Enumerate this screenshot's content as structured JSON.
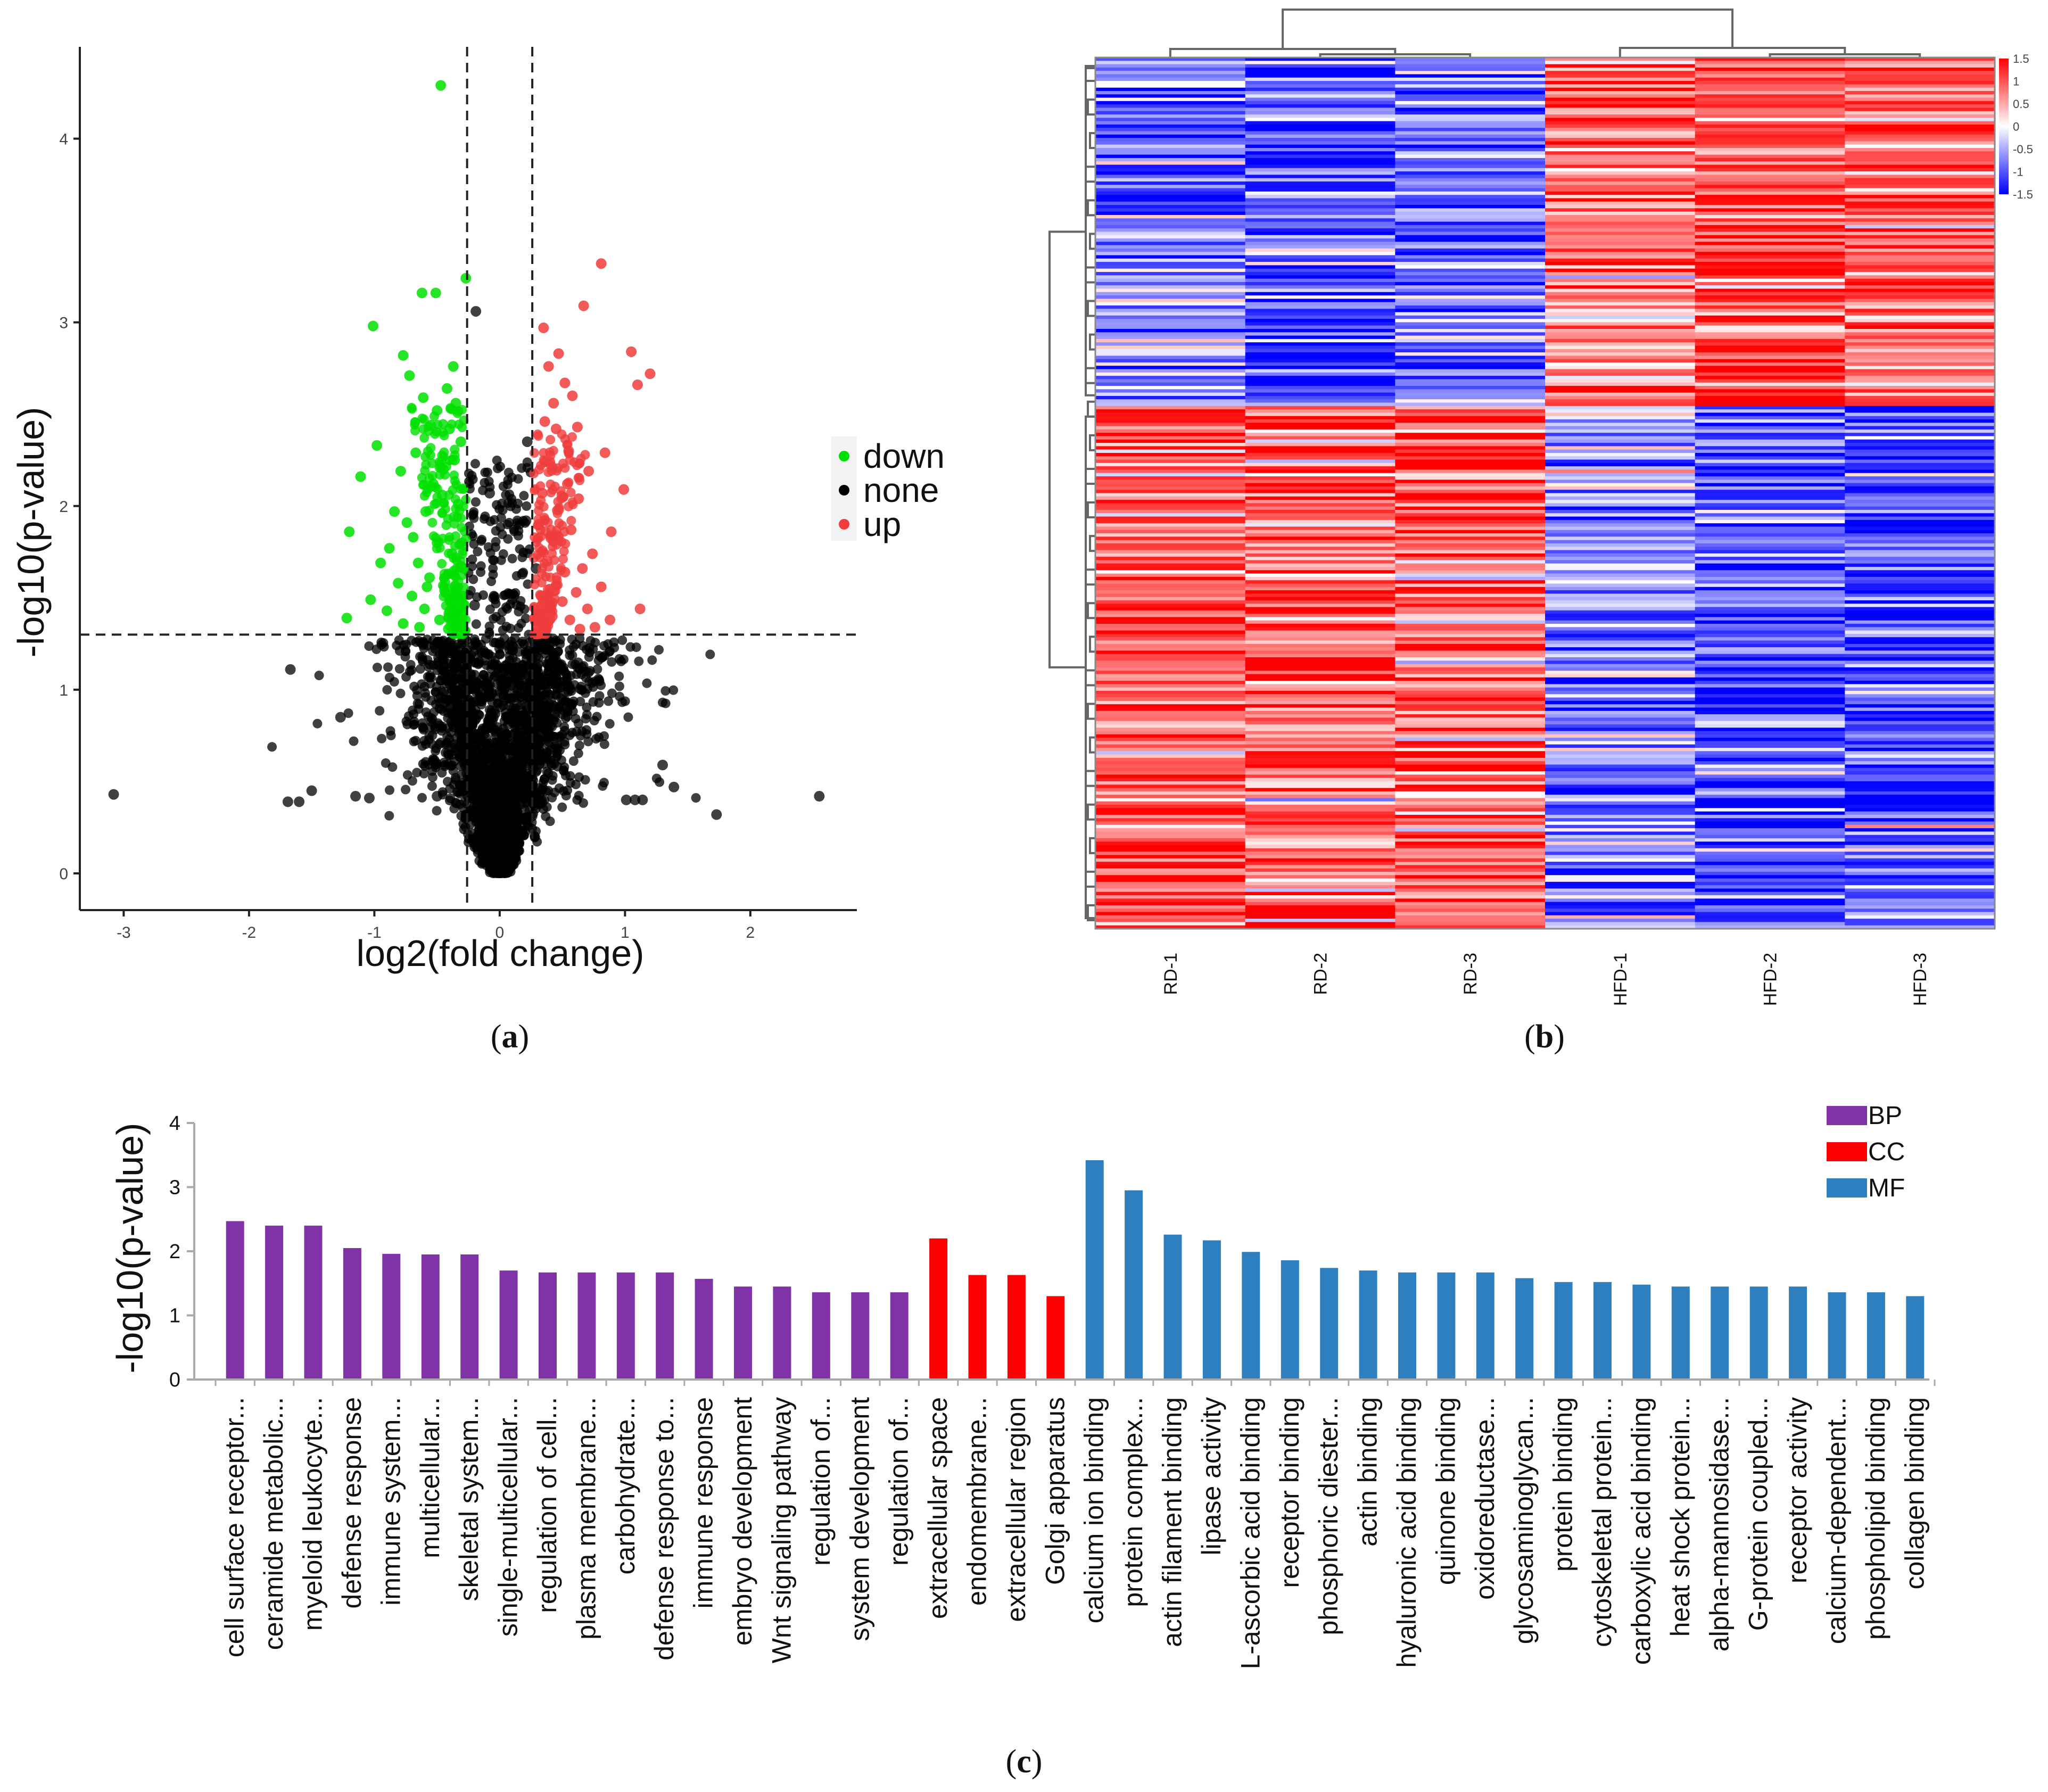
{
  "chart_data": [
    {
      "type": "scatter",
      "panel_label": "a",
      "title": "",
      "xlabel": "log2(fold change)",
      "ylabel": "-log10(p-value)",
      "xlim": [
        -3.35,
        2.85
      ],
      "ylim": [
        -0.2,
        4.5
      ],
      "x_ticks": [
        -3,
        -2,
        -1,
        0,
        1,
        2
      ],
      "y_ticks": [
        0,
        1,
        2,
        3,
        4
      ],
      "x_tick_labels": [
        "-3",
        "-2",
        "-1",
        "0",
        "1",
        "2"
      ],
      "y_tick_labels": [
        "0",
        "1",
        "2",
        "3",
        "4"
      ],
      "thresholds": {
        "x": [
          -0.26,
          0.26
        ],
        "y": 1.3
      },
      "legend": {
        "position": "right",
        "entries": [
          {
            "name": "down",
            "color": "#00e000"
          },
          {
            "name": "none",
            "color": "#000000"
          },
          {
            "name": "up",
            "color": "#f03c3c"
          }
        ]
      },
      "series": [
        {
          "name": "down",
          "color": "#00e000",
          "points": [
            [
              -0.47,
              4.29
            ],
            [
              -0.27,
              3.24
            ],
            [
              -0.62,
              3.16
            ],
            [
              -0.51,
              3.16
            ],
            [
              -1.01,
              2.98
            ],
            [
              -0.77,
              2.82
            ],
            [
              -0.37,
              2.76
            ],
            [
              -0.72,
              2.71
            ],
            [
              -0.42,
              2.64
            ],
            [
              -0.61,
              2.59
            ],
            [
              -0.35,
              2.56
            ],
            [
              -0.98,
              2.33
            ],
            [
              -0.67,
              2.29
            ],
            [
              -0.4,
              2.42
            ],
            [
              -0.31,
              2.35
            ],
            [
              -0.79,
              2.19
            ],
            [
              -1.11,
              2.16
            ],
            [
              -0.53,
              2.12
            ],
            [
              -0.36,
              2.25
            ],
            [
              -0.46,
              2.06
            ],
            [
              -0.59,
              1.97
            ],
            [
              -1.2,
              1.86
            ],
            [
              -0.74,
              1.91
            ],
            [
              -0.33,
              2.01
            ],
            [
              -0.88,
              1.77
            ],
            [
              -0.5,
              1.8
            ],
            [
              -0.65,
              1.69
            ],
            [
              -0.95,
              1.69
            ],
            [
              -0.38,
              1.74
            ],
            [
              -0.81,
              1.58
            ],
            [
              -0.56,
              1.61
            ],
            [
              -0.29,
              1.66
            ],
            [
              -1.03,
              1.49
            ],
            [
              -0.7,
              1.51
            ],
            [
              -0.44,
              1.54
            ],
            [
              -1.22,
              1.39
            ],
            [
              -0.9,
              1.43
            ],
            [
              -0.6,
              1.44
            ],
            [
              -0.34,
              1.47
            ],
            [
              -0.77,
              1.36
            ],
            [
              -0.48,
              1.38
            ],
            [
              -0.64,
              1.34
            ],
            [
              -0.41,
              1.33
            ],
            [
              -0.3,
              1.4
            ],
            [
              -0.55,
              2.44
            ],
            [
              -0.45,
              2.2
            ],
            [
              -0.5,
              2.52
            ],
            [
              -0.84,
              1.97
            ],
            [
              -0.69,
              1.83
            ],
            [
              -0.58,
              1.56
            ]
          ]
        },
        {
          "name": "up",
          "color": "#f03c3c",
          "points": [
            [
              0.81,
              3.32
            ],
            [
              0.67,
              3.09
            ],
            [
              0.35,
              2.97
            ],
            [
              1.05,
              2.84
            ],
            [
              0.47,
              2.83
            ],
            [
              1.2,
              2.72
            ],
            [
              0.52,
              2.67
            ],
            [
              0.39,
              2.76
            ],
            [
              0.58,
              2.6
            ],
            [
              1.1,
              2.66
            ],
            [
              0.43,
              2.56
            ],
            [
              0.62,
              2.43
            ],
            [
              0.84,
              2.29
            ],
            [
              0.45,
              2.42
            ],
            [
              0.36,
              2.46
            ],
            [
              0.71,
              2.19
            ],
            [
              0.54,
              2.12
            ],
            [
              0.99,
              2.09
            ],
            [
              0.4,
              2.24
            ],
            [
              0.63,
              2.04
            ],
            [
              0.47,
              1.98
            ],
            [
              0.34,
              2.07
            ],
            [
              0.89,
              1.86
            ],
            [
              0.57,
              1.87
            ],
            [
              0.74,
              1.74
            ],
            [
              0.43,
              1.81
            ],
            [
              0.31,
              1.9
            ],
            [
              0.66,
              1.66
            ],
            [
              0.52,
              1.64
            ],
            [
              0.38,
              1.7
            ],
            [
              0.81,
              1.56
            ],
            [
              0.61,
              1.53
            ],
            [
              0.45,
              1.57
            ],
            [
              1.12,
              1.44
            ],
            [
              0.7,
              1.44
            ],
            [
              0.5,
              1.48
            ],
            [
              0.33,
              1.51
            ],
            [
              0.88,
              1.38
            ],
            [
              0.56,
              1.38
            ],
            [
              0.42,
              1.4
            ],
            [
              0.3,
              1.42
            ],
            [
              0.64,
              1.33
            ],
            [
              0.76,
              1.34
            ],
            [
              0.36,
              2.24
            ],
            [
              0.55,
              2.3
            ]
          ]
        },
        {
          "name": "none",
          "color": "#000000",
          "points": [
            [
              -3.08,
              0.43
            ],
            [
              -1.67,
              1.11
            ],
            [
              -1.69,
              0.39
            ],
            [
              -1.6,
              0.39
            ],
            [
              -1.5,
              0.45
            ],
            [
              -1.27,
              0.85
            ],
            [
              -1.15,
              0.42
            ],
            [
              -1.04,
              0.41
            ],
            [
              -0.5,
              0.42
            ],
            [
              2.55,
              0.42
            ],
            [
              1.73,
              0.32
            ],
            [
              1.39,
              0.47
            ],
            [
              1.3,
              0.59
            ],
            [
              1.08,
              0.4
            ],
            [
              1.01,
              0.4
            ],
            [
              1.14,
              0.4
            ],
            [
              -0.19,
              3.06
            ],
            [
              0.22,
              2.35
            ],
            [
              -0.08,
              2.07
            ],
            [
              0.21,
              1.92
            ],
            [
              -0.2,
              1.46
            ],
            [
              0.18,
              1.63
            ],
            [
              0.29,
              1.66
            ]
          ]
        }
      ]
    },
    {
      "type": "heatmap",
      "panel_label": "b",
      "title": "",
      "columns": [
        "RD-1",
        "RD-2",
        "RD-3",
        "HFD-1",
        "HFD-2",
        "HFD-3"
      ],
      "color_scale": {
        "ticks": [
          1.5,
          1,
          0.5,
          0,
          -0.5,
          -1,
          -1.5
        ],
        "tick_labels": [
          "1.5",
          "1",
          "0.5",
          "0",
          "-0.5",
          "-1",
          "-1.5"
        ],
        "low": "#0000ff",
        "mid": "#ffffff",
        "high": "#ff0000"
      },
      "row_bands": [
        {
          "rows_fraction": 0.4,
          "values": [
            -0.6,
            -1.0,
            -0.8,
            0.9,
            1.1,
            1.0
          ]
        },
        {
          "rows_fraction": 0.6,
          "values": [
            0.9,
            0.9,
            0.9,
            -0.7,
            -1.1,
            -1.1
          ]
        }
      ]
    },
    {
      "type": "bar",
      "panel_label": "c",
      "title": "",
      "xlabel": "",
      "ylabel": "-log10(p-value)",
      "ylim": [
        0,
        4
      ],
      "y_ticks": [
        0,
        1,
        2,
        3,
        4
      ],
      "y_tick_labels": [
        "0",
        "1",
        "2",
        "3",
        "4"
      ],
      "legend": {
        "position": "top-right",
        "entries": [
          {
            "name": "BP",
            "color": "#7f33a7"
          },
          {
            "name": "CC",
            "color": "#ff0000"
          },
          {
            "name": "MF",
            "color": "#2e7fc0"
          }
        ]
      },
      "categories": [
        "cell surface receptor...",
        "ceramide metabolic...",
        "myeloid leukocyte...",
        "defense response",
        "immune system...",
        "multicellular...",
        "skeletal system...",
        "single-multicellular...",
        "regulation of cell...",
        "plasma membrane...",
        "carbohydrate...",
        "defense response to...",
        "immune response",
        "embryo development",
        "Wnt signaling pathway",
        "regulation of...",
        "system development",
        "regulation of...",
        "extracellular space",
        "endomembrane...",
        "extracellular region",
        "Golgi apparatus",
        "calcium ion binding",
        "protein complex...",
        "actin filament binding",
        "lipase activity",
        "L-ascorbic acid binding",
        "receptor binding",
        "phosphoric diester...",
        "actin binding",
        "hyaluronic acid binding",
        "quinone binding",
        "oxidoreductase...",
        "glycosaminoglycan...",
        "protein binding",
        "cytoskeletal protein...",
        "carboxylic acid binding",
        "heat shock protein...",
        "alpha-mannosidase...",
        "G-protein coupled...",
        "receptor activity",
        "calcium-dependent...",
        "phospholipid binding",
        "collagen binding"
      ],
      "groups": [
        "BP",
        "BP",
        "BP",
        "BP",
        "BP",
        "BP",
        "BP",
        "BP",
        "BP",
        "BP",
        "BP",
        "BP",
        "BP",
        "BP",
        "BP",
        "BP",
        "BP",
        "BP",
        "CC",
        "CC",
        "CC",
        "CC",
        "MF",
        "MF",
        "MF",
        "MF",
        "MF",
        "MF",
        "MF",
        "MF",
        "MF",
        "MF",
        "MF",
        "MF",
        "MF",
        "MF",
        "MF",
        "MF",
        "MF",
        "MF",
        "MF",
        "MF",
        "MF",
        "MF"
      ],
      "values": [
        2.47,
        2.4,
        2.4,
        2.05,
        1.96,
        1.95,
        1.95,
        1.7,
        1.67,
        1.67,
        1.67,
        1.67,
        1.57,
        1.45,
        1.45,
        1.36,
        1.36,
        1.36,
        2.2,
        1.63,
        1.63,
        1.3,
        3.42,
        2.95,
        2.26,
        2.17,
        1.99,
        1.86,
        1.74,
        1.7,
        1.67,
        1.67,
        1.67,
        1.58,
        1.52,
        1.52,
        1.48,
        1.45,
        1.45,
        1.45,
        1.45,
        1.36,
        1.36,
        1.3
      ]
    }
  ]
}
